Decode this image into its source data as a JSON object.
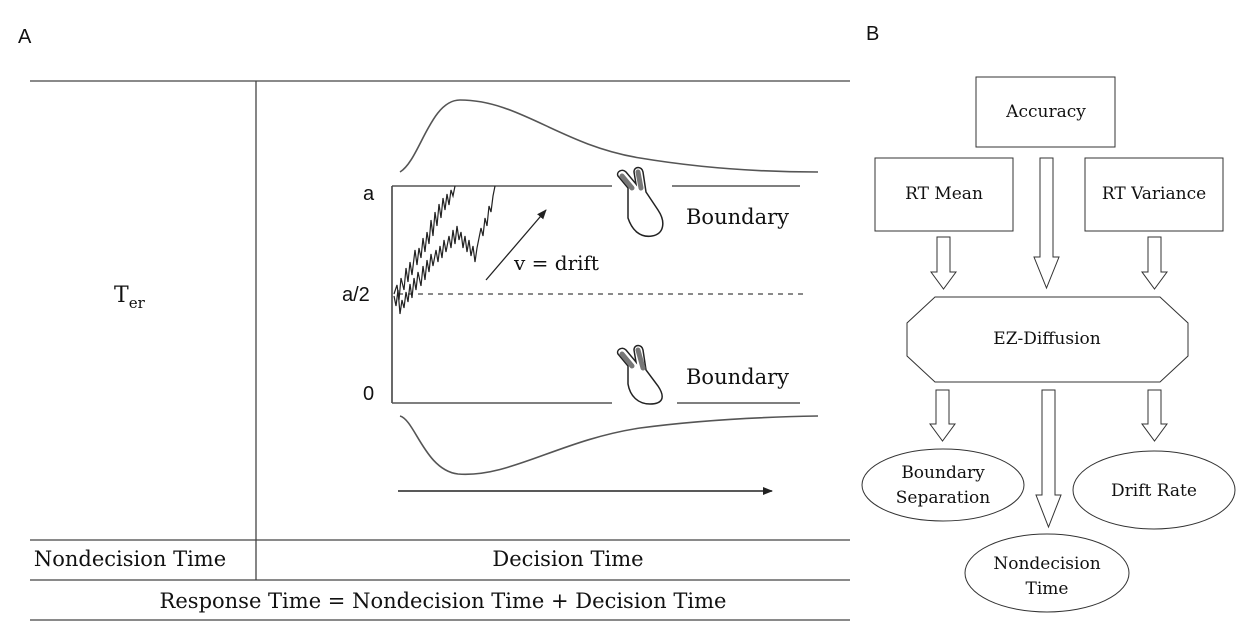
{
  "panel_a": {
    "label": "A",
    "ter_main": "T",
    "ter_sub": "er",
    "y_labels": {
      "top": "a",
      "mid": "a/2",
      "bottom": "0"
    },
    "boundary_upper": "Boundary",
    "boundary_lower": "Boundary",
    "drift_label": "v = drift",
    "col_left": "Nondecision Time",
    "col_right": "Decision Time",
    "equation": "Response Time = Nondecision Time + Decision Time"
  },
  "panel_b": {
    "label": "B",
    "inputs": {
      "accuracy": "Accuracy",
      "rt_mean": "RT Mean",
      "rt_variance": "RT Variance"
    },
    "model": "EZ-Diffusion",
    "outputs": {
      "boundary_line1": "Boundary",
      "boundary_line2": "Separation",
      "drift_rate": "Drift Rate",
      "nondecision_line1": "Nondecision",
      "nondecision_line2": "Time"
    }
  }
}
